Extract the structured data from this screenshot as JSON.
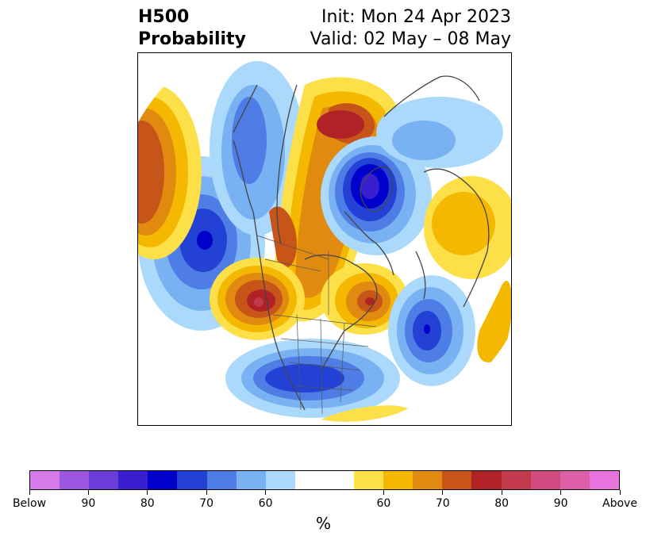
{
  "title": {
    "left_line1": "H500",
    "left_line2": "Probability",
    "right_line1": "Init: Mon 24 Apr 2023",
    "right_line2": "Valid: 02 May – 08 May"
  },
  "colorbar": {
    "unit": "%",
    "colors": [
      "#d57ae8",
      "#9b57e0",
      "#6a3dd8",
      "#3a1fd1",
      "#0000cc",
      "#2441d6",
      "#4f7de6",
      "#79b2f3",
      "#aad9fb",
      "#ffffff",
      "#ffffff",
      "#fde047",
      "#f5b800",
      "#e08a10",
      "#c75418",
      "#b02226",
      "#c2384c",
      "#d04c80",
      "#dc5fa8",
      "#e874de"
    ],
    "tick_labels": [
      "Below",
      "90",
      "80",
      "70",
      "60",
      "60",
      "70",
      "80",
      "90",
      "Above"
    ]
  },
  "legend_colors": {
    "below_strong": "#0000cc",
    "below_weak": "#aad9fb",
    "above_weak": "#fde047",
    "above_strong": "#b02226"
  }
}
